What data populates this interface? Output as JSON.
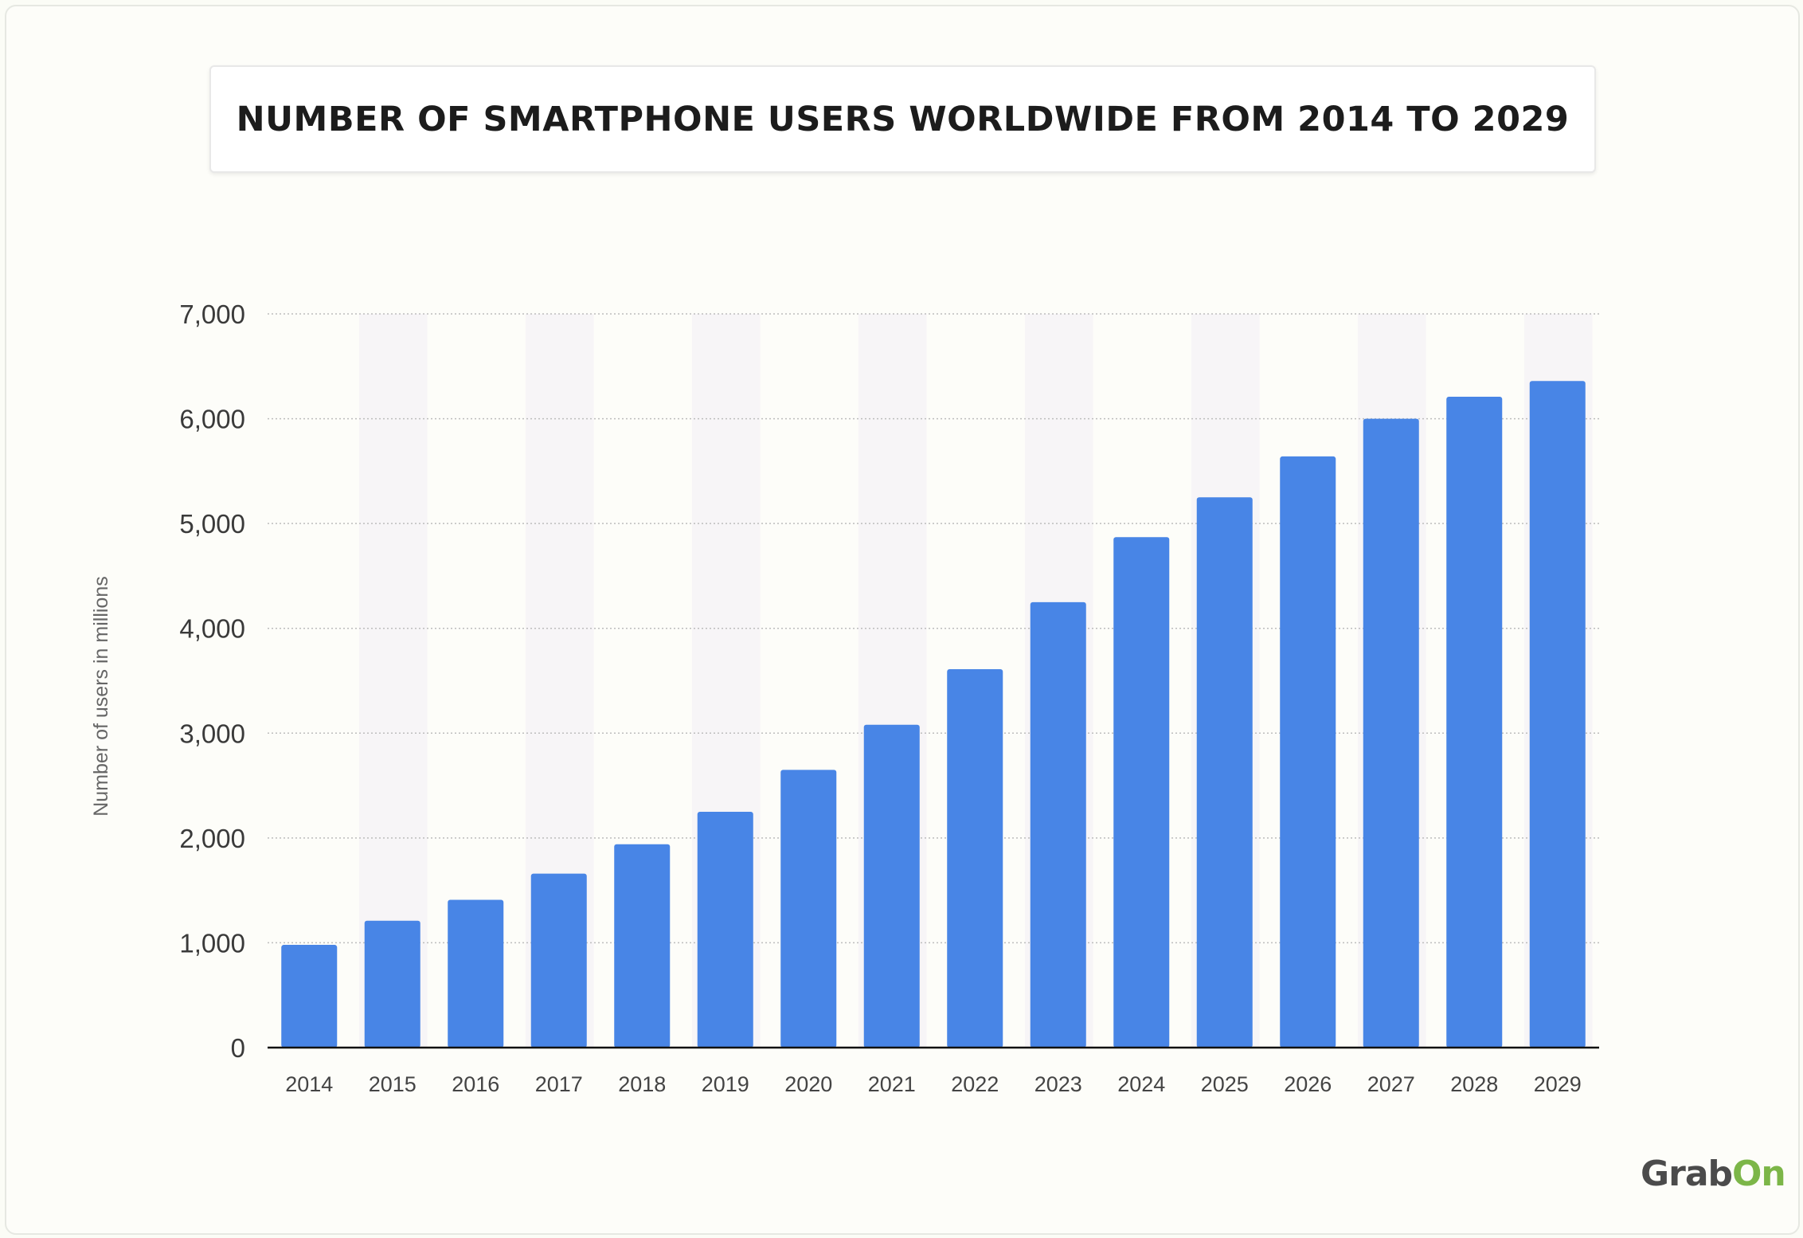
{
  "chart_data": {
    "type": "bar",
    "title": "NUMBER OF SMARTPHONE USERS WORLDWIDE FROM 2014 TO 2029",
    "xlabel": "",
    "ylabel": "Number of users in millions",
    "categories": [
      "2014",
      "2015",
      "2016",
      "2017",
      "2018",
      "2019",
      "2020",
      "2021",
      "2022",
      "2023",
      "2024",
      "2025",
      "2026",
      "2027",
      "2028",
      "2029"
    ],
    "values": [
      980,
      1210,
      1410,
      1660,
      1940,
      2250,
      2650,
      3080,
      3610,
      4250,
      4870,
      5250,
      5640,
      6000,
      6210,
      6360
    ],
    "ylim": [
      0,
      7000
    ],
    "yticks": [
      0,
      1000,
      2000,
      3000,
      4000,
      5000,
      6000,
      7000
    ],
    "ytick_labels": [
      "0",
      "1,000",
      "2,000",
      "3,000",
      "4,000",
      "5,000",
      "6,000",
      "7,000"
    ],
    "grid": true,
    "grid_style": "dotted",
    "alternating_column_shading": true,
    "bar_color": "#4885e6",
    "shade_color": "#f7f5f7"
  },
  "logo": {
    "part1": "Grab",
    "part2": "On"
  }
}
